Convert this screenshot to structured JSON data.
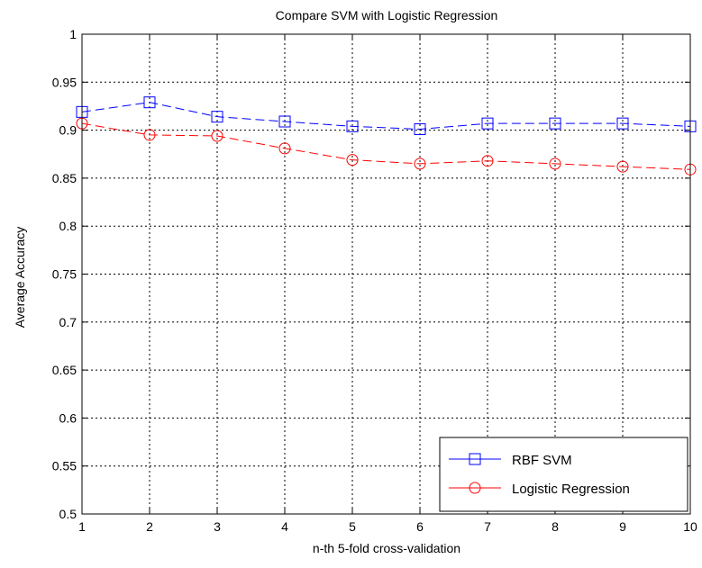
{
  "chart_data": {
    "type": "line",
    "title": "Compare SVM with Logistic Regression",
    "xlabel": "n-th 5-fold cross-validation",
    "ylabel": "Average Accuracy",
    "x": [
      1,
      2,
      3,
      4,
      5,
      6,
      7,
      8,
      9,
      10
    ],
    "xlim": [
      1,
      10
    ],
    "ylim": [
      0.5,
      1
    ],
    "xticks": [
      "1",
      "2",
      "3",
      "4",
      "5",
      "6",
      "7",
      "8",
      "9",
      "10"
    ],
    "yticks": [
      "0.5",
      "0.55",
      "0.6",
      "0.65",
      "0.7",
      "0.75",
      "0.8",
      "0.85",
      "0.9",
      "0.95",
      "1"
    ],
    "grid": true,
    "legend_position": "bottom-right",
    "series": [
      {
        "name": "RBF SVM",
        "color": "#0000ff",
        "marker": "square",
        "line_style": "dashed",
        "values": [
          0.919,
          0.929,
          0.914,
          0.909,
          0.904,
          0.901,
          0.907,
          0.907,
          0.907,
          0.904
        ]
      },
      {
        "name": "Logistic Regression",
        "color": "#ff0000",
        "marker": "circle",
        "line_style": "dashed",
        "values": [
          0.907,
          0.895,
          0.894,
          0.881,
          0.869,
          0.865,
          0.868,
          0.865,
          0.862,
          0.859
        ]
      }
    ]
  }
}
